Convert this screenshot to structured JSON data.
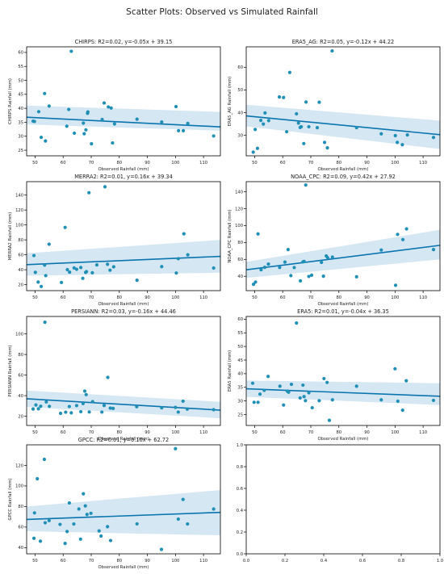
{
  "figure": {
    "title": "Scatter Plots: Observed vs Simulated Rainfall"
  },
  "style": {
    "point_color": "#1f8fb5",
    "line_color": "#0a74ae",
    "band_color": "#cfe3f2"
  },
  "chart_data": [
    {
      "type": "scatter",
      "title": "CHIRPS: R2=0.02, y=-0.05x + 39.15",
      "xlabel": "Observed Rainfall (mm)",
      "ylabel": "CHIRPS Rainfall (mm)",
      "xlim": [
        47,
        116
      ],
      "ylim": [
        23,
        62
      ],
      "xticks": [
        50,
        60,
        70,
        80,
        90,
        100,
        110
      ],
      "yticks": [
        25,
        30,
        35,
        40,
        45,
        50,
        55,
        60
      ],
      "regression": {
        "slope": -0.05,
        "intercept": 39.15
      },
      "ci": {
        "lower": [
          34.2,
          32.0
        ],
        "upper": [
          41.0,
          38.7
        ]
      },
      "points": [
        [
          49.3,
          35.4
        ],
        [
          49.8,
          35.3
        ],
        [
          51.3,
          38.8
        ],
        [
          52.2,
          29.6
        ],
        [
          53.4,
          45.3
        ],
        [
          53.7,
          28.3
        ],
        [
          55.0,
          40.8
        ],
        [
          61.3,
          33.6
        ],
        [
          62.0,
          39.6
        ],
        [
          62.9,
          60.4
        ],
        [
          64.0,
          31.1
        ],
        [
          67.2,
          34.7
        ],
        [
          67.5,
          30.9
        ],
        [
          68.1,
          32.3
        ],
        [
          68.7,
          38.2
        ],
        [
          68.8,
          38.7
        ],
        [
          70.1,
          27.3
        ],
        [
          73.9,
          36.0
        ],
        [
          74.6,
          41.9
        ],
        [
          76.1,
          40.5
        ],
        [
          77.1,
          40.1
        ],
        [
          77.6,
          27.6
        ],
        [
          78.3,
          34.4
        ],
        [
          86.3,
          36.1
        ],
        [
          95.1,
          35.1
        ],
        [
          100.2,
          40.6
        ],
        [
          101.1,
          32.0
        ],
        [
          102.8,
          32.0
        ],
        [
          104.4,
          34.6
        ],
        [
          113.6,
          30.1
        ]
      ]
    },
    {
      "type": "scatter",
      "title": "ERA5_AG: R2=0.05, y=-0.12x + 44.22",
      "xlabel": "Observed Rainfall (mm)",
      "ylabel": "ERA5_AG Rainfall (mm)",
      "xlim": [
        47,
        116
      ],
      "ylim": [
        21,
        69
      ],
      "xticks": [
        50,
        60,
        70,
        80,
        90,
        100,
        110
      ],
      "yticks": [
        30,
        40,
        50,
        60
      ],
      "regression": {
        "slope": -0.12,
        "intercept": 44.22
      },
      "ci": {
        "lower": [
          34.0,
          24.0
        ],
        "upper": [
          43.5,
          36.5
        ]
      },
      "points": [
        [
          49.5,
          22.6
        ],
        [
          50.2,
          32.6
        ],
        [
          51.0,
          24.3
        ],
        [
          52.2,
          36.6
        ],
        [
          53.1,
          35.0
        ],
        [
          53.7,
          39.9
        ],
        [
          55.0,
          36.5
        ],
        [
          58.8,
          46.9
        ],
        [
          60.3,
          46.7
        ],
        [
          61.4,
          31.6
        ],
        [
          62.5,
          57.7
        ],
        [
          64.9,
          39.5
        ],
        [
          65.6,
          35.4
        ],
        [
          66.2,
          33.5
        ],
        [
          66.6,
          33.8
        ],
        [
          67.5,
          26.4
        ],
        [
          68.3,
          44.7
        ],
        [
          69.3,
          33.8
        ],
        [
          72.3,
          33.4
        ],
        [
          73.0,
          44.6
        ],
        [
          74.9,
          26.9
        ],
        [
          75.9,
          24.5
        ],
        [
          77.6,
          67.2
        ],
        [
          86.3,
          33.4
        ],
        [
          95.1,
          30.7
        ],
        [
          100.1,
          29.9
        ],
        [
          100.8,
          26.9
        ],
        [
          102.6,
          25.9
        ],
        [
          104.4,
          30.2
        ],
        [
          113.7,
          29.1
        ]
      ]
    },
    {
      "type": "scatter",
      "title": "MERRA2: R2=0.01, y=0.16x + 39.34",
      "xlabel": "Observed Rainfall (mm)",
      "ylabel": "MERRA2 Rainfall (mm)",
      "xlim": [
        47,
        116
      ],
      "ylim": [
        12,
        158
      ],
      "xticks": [
        50,
        60,
        70,
        80,
        90,
        100,
        110
      ],
      "yticks": [
        20,
        40,
        60,
        80,
        100,
        120,
        140
      ],
      "regression": {
        "slope": 0.16,
        "intercept": 39.34
      },
      "ci": {
        "lower": [
          32.0,
          36.0
        ],
        "upper": [
          62.0,
          80.0
        ]
      },
      "points": [
        [
          49.6,
          59.0
        ],
        [
          50.1,
          36.5
        ],
        [
          51.1,
          23.5
        ],
        [
          52.2,
          17.6
        ],
        [
          53.4,
          46.2
        ],
        [
          53.8,
          32.1
        ],
        [
          55.0,
          74.2
        ],
        [
          59.4,
          22.9
        ],
        [
          60.7,
          96.7
        ],
        [
          61.5,
          40.1
        ],
        [
          62.3,
          36.7
        ],
        [
          63.9,
          42.4
        ],
        [
          64.8,
          40.6
        ],
        [
          66.3,
          43.0
        ],
        [
          67.0,
          28.5
        ],
        [
          68.0,
          36.4
        ],
        [
          68.3,
          37.4
        ],
        [
          69.2,
          143.2
        ],
        [
          70.4,
          35.9
        ],
        [
          72.0,
          46.5
        ],
        [
          74.9,
          151.1
        ],
        [
          75.8,
          47.3
        ],
        [
          76.7,
          39.4
        ],
        [
          78.0,
          43.9
        ],
        [
          86.3,
          25.9
        ],
        [
          95.1,
          44.2
        ],
        [
          100.3,
          35.6
        ],
        [
          101.0,
          54.8
        ],
        [
          103.0,
          88.1
        ],
        [
          104.4,
          60.0
        ],
        [
          113.6,
          42.3
        ]
      ]
    },
    {
      "type": "scatter",
      "title": "NOAA_CPC: R2=0.09, y=0.42x + 27.92",
      "xlabel": "Observed Rainfall (mm)",
      "ylabel": "NOAA_CPC Rainfall (mm)",
      "xlim": [
        47,
        116
      ],
      "ylim": [
        23,
        152
      ],
      "xticks": [
        50,
        60,
        70,
        80,
        90,
        100,
        110
      ],
      "yticks": [
        40,
        60,
        80,
        100,
        120,
        140
      ],
      "regression": {
        "slope": 0.42,
        "intercept": 27.92
      },
      "ci": {
        "lower": [
          38.0,
          60.0
        ],
        "upper": [
          57.0,
          95.0
        ]
      },
      "points": [
        [
          49.6,
          30.5
        ],
        [
          50.3,
          33.1
        ],
        [
          51.2,
          90.1
        ],
        [
          52.3,
          47.7
        ],
        [
          53.6,
          50.6
        ],
        [
          54.9,
          54.4
        ],
        [
          58.9,
          50.4
        ],
        [
          60.8,
          56.8
        ],
        [
          61.9,
          71.6
        ],
        [
          62.9,
          40.8
        ],
        [
          64.1,
          50.3
        ],
        [
          66.3,
          34.6
        ],
        [
          67.2,
          57.0
        ],
        [
          67.6,
          57.6
        ],
        [
          68.2,
          148.0
        ],
        [
          69.3,
          39.8
        ],
        [
          70.3,
          41.3
        ],
        [
          73.8,
          56.4
        ],
        [
          74.5,
          40.1
        ],
        [
          75.5,
          64.1
        ],
        [
          76.0,
          62.0
        ],
        [
          77.7,
          62.7
        ],
        [
          86.3,
          39.4
        ],
        [
          95.1,
          71.1
        ],
        [
          100.2,
          29.3
        ],
        [
          100.9,
          89.6
        ],
        [
          102.8,
          83.4
        ],
        [
          104.1,
          96.1
        ],
        [
          113.7,
          71.6
        ]
      ]
    },
    {
      "type": "scatter",
      "title": "PERSIANN: R2=0.03, y=-0.16x + 44.46",
      "xlabel": "Observed Rainfall (mm)",
      "ylabel": "PERSIANN Rainfall (mm)",
      "xlim": [
        47,
        116
      ],
      "ylim": [
        11,
        117
      ],
      "xticks": [
        50,
        60,
        70,
        80,
        90,
        100,
        110
      ],
      "yticks": [
        20,
        40,
        60,
        80,
        100
      ],
      "regression": {
        "slope": -0.16,
        "intercept": 44.46
      },
      "ci": {
        "lower": [
          29.0,
          18.0
        ],
        "upper": [
          45.0,
          34.0
        ]
      },
      "points": [
        [
          49.3,
          27.0
        ],
        [
          50.3,
          30.9
        ],
        [
          51.2,
          27.2
        ],
        [
          52.0,
          29.7
        ],
        [
          53.5,
          111.4
        ],
        [
          54.0,
          33.9
        ],
        [
          55.1,
          29.6
        ],
        [
          59.1,
          22.8
        ],
        [
          60.9,
          23.9
        ],
        [
          62.2,
          29.4
        ],
        [
          62.9,
          23.3
        ],
        [
          64.8,
          30.3
        ],
        [
          66.3,
          24.4
        ],
        [
          67.1,
          32.3
        ],
        [
          67.7,
          44.4
        ],
        [
          68.2,
          41.0
        ],
        [
          69.3,
          24.1
        ],
        [
          70.5,
          34.2
        ],
        [
          73.8,
          24.0
        ],
        [
          74.6,
          30.4
        ],
        [
          75.9,
          57.7
        ],
        [
          76.8,
          27.9
        ],
        [
          77.8,
          27.6
        ],
        [
          86.2,
          29.2
        ],
        [
          95.1,
          28.2
        ],
        [
          100.0,
          28.6
        ],
        [
          101.0,
          24.0
        ],
        [
          102.7,
          34.6
        ],
        [
          104.2,
          26.9
        ],
        [
          113.6,
          26.3
        ]
      ]
    },
    {
      "type": "scatter",
      "title": "ERA5: R2=0.01, y=-0.04x + 36.35",
      "xlabel": "Observed Rainfall (mm)",
      "ylabel": "ERA5 Rainfall (mm)",
      "xlim": [
        47,
        116
      ],
      "ylim": [
        21,
        61
      ],
      "xticks": [
        50,
        60,
        70,
        80,
        90,
        100,
        110
      ],
      "yticks": [
        25,
        30,
        35,
        40,
        45,
        50,
        55,
        60
      ],
      "regression": {
        "slope": -0.04,
        "intercept": 36.35
      },
      "ci": {
        "lower": [
          31.5,
          28.5
        ],
        "upper": [
          37.5,
          36.5
        ]
      },
      "points": [
        [
          49.3,
          36.5
        ],
        [
          49.8,
          29.5
        ],
        [
          51.2,
          29.5
        ],
        [
          51.9,
          32.5
        ],
        [
          53.4,
          33.9
        ],
        [
          54.8,
          39.0
        ],
        [
          59.0,
          35.4
        ],
        [
          60.3,
          28.5
        ],
        [
          61.6,
          33.6
        ],
        [
          62.1,
          33.2
        ],
        [
          63.1,
          36.1
        ],
        [
          64.9,
          58.6
        ],
        [
          66.2,
          31.1
        ],
        [
          67.2,
          35.8
        ],
        [
          67.6,
          31.6
        ],
        [
          68.1,
          30.1
        ],
        [
          69.3,
          33.0
        ],
        [
          70.5,
          27.5
        ],
        [
          73.0,
          30.1
        ],
        [
          74.7,
          38.2
        ],
        [
          75.8,
          36.8
        ],
        [
          76.6,
          22.9
        ],
        [
          77.7,
          30.4
        ],
        [
          86.3,
          35.4
        ],
        [
          95.1,
          30.4
        ],
        [
          100.0,
          41.8
        ],
        [
          101.0,
          29.9
        ],
        [
          102.7,
          26.6
        ],
        [
          104.0,
          37.4
        ],
        [
          113.7,
          30.2
        ]
      ]
    },
    {
      "type": "scatter",
      "title": "GPCC: R2=0.01, y=0.10x + 62.72",
      "xlabel": "Observed Rainfall (mm)",
      "ylabel": "GPCC Rainfall (mm)",
      "xlim": [
        47,
        116
      ],
      "ylim": [
        34,
        140
      ],
      "xticks": [
        50,
        60,
        70,
        80,
        90,
        100,
        110
      ],
      "yticks": [
        40,
        60,
        80,
        100,
        120
      ],
      "regression": {
        "slope": 0.1,
        "intercept": 62.72
      },
      "ci": {
        "lower": [
          56.0,
          52.0
        ],
        "upper": [
          80.0,
          96.0
        ]
      },
      "points": [
        [
          49.6,
          49.1
        ],
        [
          49.8,
          73.8
        ],
        [
          50.8,
          107.0
        ],
        [
          51.9,
          46.3
        ],
        [
          53.3,
          125.9
        ],
        [
          53.6,
          64.2
        ],
        [
          55.0,
          66.3
        ],
        [
          58.9,
          62.6
        ],
        [
          60.7,
          44.1
        ],
        [
          61.4,
          55.7
        ],
        [
          62.2,
          83.5
        ],
        [
          63.8,
          63.0
        ],
        [
          65.6,
          77.6
        ],
        [
          66.2,
          48.3
        ],
        [
          67.2,
          92.4
        ],
        [
          67.9,
          80.6
        ],
        [
          68.5,
          72.3
        ],
        [
          69.9,
          73.4
        ],
        [
          72.8,
          56.3
        ],
        [
          73.5,
          51.3
        ],
        [
          75.8,
          60.4
        ],
        [
          76.9,
          46.9
        ],
        [
          86.3,
          63.1
        ],
        [
          95.0,
          38.3
        ],
        [
          100.0,
          136.3
        ],
        [
          101.0,
          67.8
        ],
        [
          102.7,
          86.9
        ],
        [
          104.3,
          63.0
        ],
        [
          113.6,
          77.6
        ]
      ]
    },
    {
      "type": "scatter",
      "title": "",
      "xlabel": "",
      "ylabel": "",
      "xlim": [
        0,
        1
      ],
      "ylim": [
        0,
        1
      ],
      "xticks": [
        0.0,
        0.2,
        0.4,
        0.6,
        0.8,
        1.0
      ],
      "yticks": [
        0.0,
        0.2,
        0.4,
        0.6,
        0.8,
        1.0
      ],
      "points": []
    }
  ]
}
